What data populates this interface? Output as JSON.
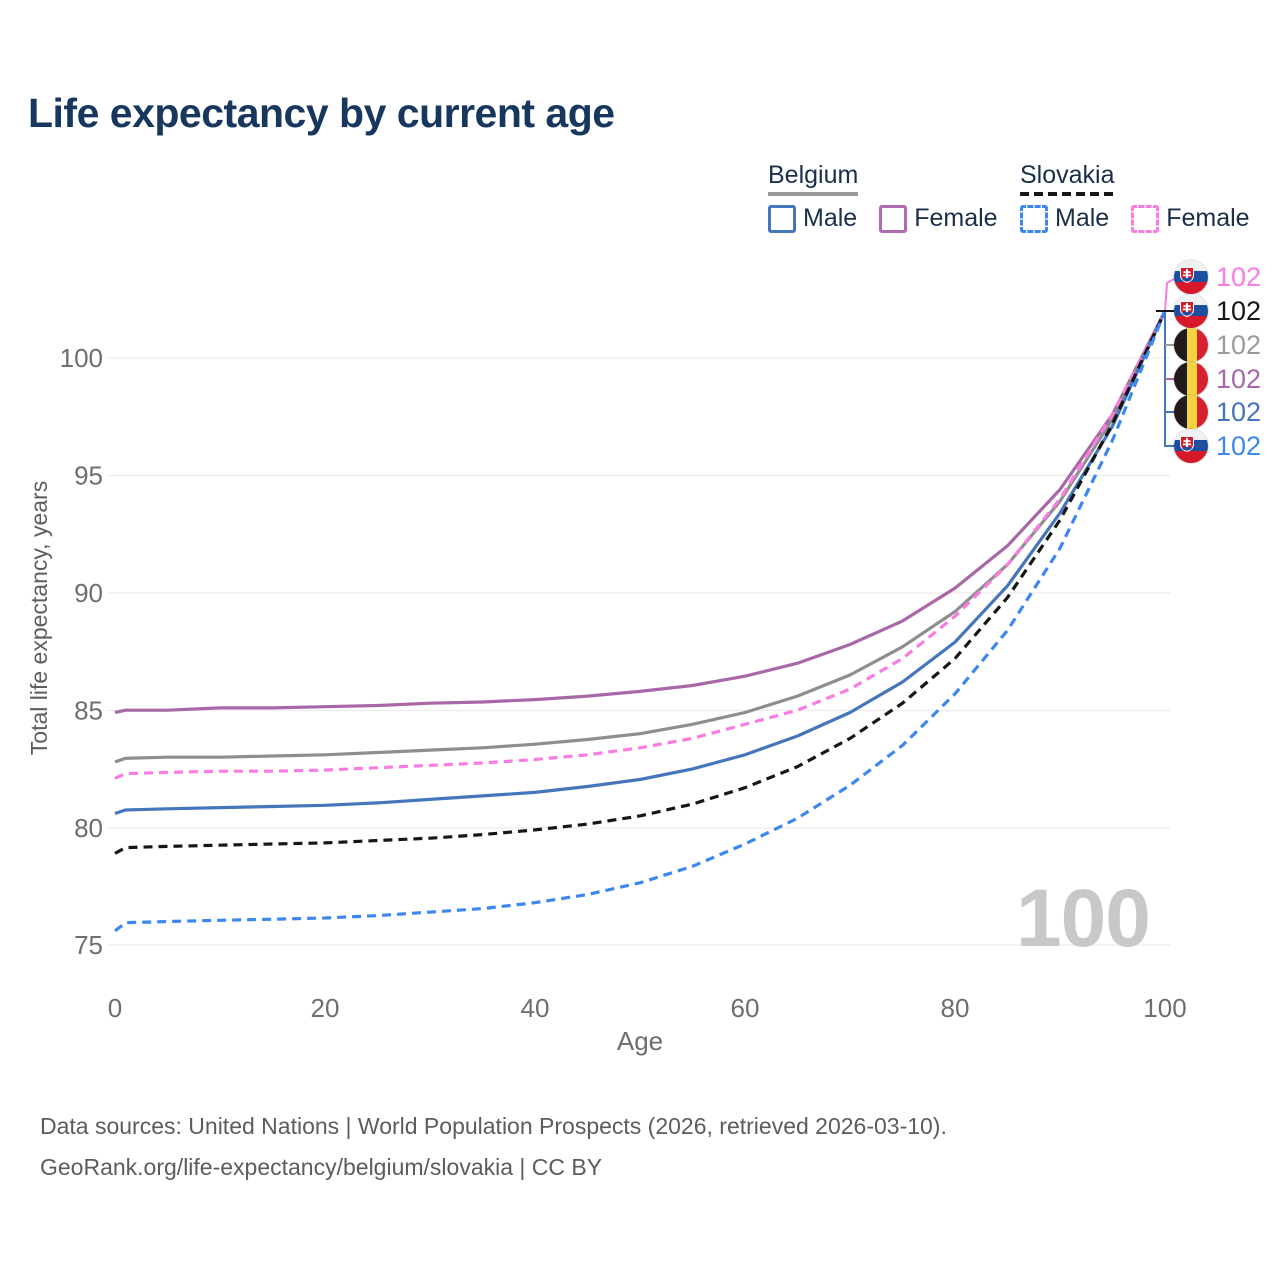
{
  "title": "Life expectancy by current age",
  "legend": {
    "belgium": {
      "label": "Belgium",
      "male": "Male",
      "female": "Female"
    },
    "slovakia": {
      "label": "Slovakia",
      "male": "Male",
      "female": "Female"
    }
  },
  "axes": {
    "y_label": "Total life expectancy, years",
    "x_label": "Age",
    "y_ticks": [
      "100",
      "95",
      "90",
      "85",
      "80",
      "75"
    ],
    "x_ticks": [
      "0",
      "20",
      "40",
      "60",
      "80",
      "100"
    ]
  },
  "end_labels": [
    {
      "flag": "slovakia-flag",
      "series": "Slovakia Female",
      "value": "102",
      "color": "#f97ce1"
    },
    {
      "flag": "slovakia-flag",
      "series": "Slovakia",
      "value": "102",
      "color": "#161616"
    },
    {
      "flag": "belgium-flag",
      "series": "Belgium",
      "value": "102",
      "color": "#9b9b9b"
    },
    {
      "flag": "belgium-flag",
      "series": "Belgium Female",
      "value": "102",
      "color": "#a868a8"
    },
    {
      "flag": "belgium-flag",
      "series": "Belgium Male",
      "value": "102",
      "color": "#4576bb"
    },
    {
      "flag": "slovakia-flag",
      "series": "Slovakia Male",
      "value": "102",
      "color": "#3d87f0"
    }
  ],
  "watermark": "100",
  "footer": {
    "line1": "Data sources: United Nations | World Population Prospects (2026, retrieved 2026-03-10).",
    "line2": "GeoRank.org/life-expectancy/belgium/slovakia | CC BY"
  },
  "chart_data": {
    "type": "line",
    "title": "Life expectancy by current age",
    "xlabel": "Age",
    "ylabel": "Total life expectancy, years",
    "xlim": [
      0,
      100
    ],
    "ylim": [
      74.5,
      102.5
    ],
    "grid": "horizontal",
    "x": [
      0,
      1,
      5,
      10,
      15,
      20,
      25,
      30,
      35,
      40,
      45,
      50,
      55,
      60,
      65,
      70,
      75,
      80,
      85,
      90,
      95,
      100
    ],
    "series": [
      {
        "id": "belgium-female",
        "name": "Belgium Female",
        "color": "#a868a8",
        "dashed": false,
        "values": [
          84.9,
          85.0,
          85.0,
          85.1,
          85.1,
          85.15,
          85.2,
          85.3,
          85.35,
          85.45,
          85.6,
          85.8,
          86.05,
          86.45,
          87.0,
          87.8,
          88.8,
          90.2,
          92.0,
          94.4,
          97.6,
          102
        ]
      },
      {
        "id": "belgium-both",
        "name": "Belgium",
        "color": "#8e8e8e",
        "dashed": false,
        "values": [
          82.8,
          82.95,
          83.0,
          83.0,
          83.05,
          83.1,
          83.2,
          83.3,
          83.4,
          83.55,
          83.75,
          84.0,
          84.4,
          84.9,
          85.6,
          86.5,
          87.7,
          89.2,
          91.2,
          93.9,
          97.4,
          102
        ]
      },
      {
        "id": "belgium-male",
        "name": "Belgium Male",
        "color": "#4576bb",
        "dashed": false,
        "values": [
          80.6,
          80.75,
          80.8,
          80.85,
          80.9,
          80.95,
          81.05,
          81.2,
          81.35,
          81.5,
          81.75,
          82.05,
          82.5,
          83.1,
          83.9,
          84.9,
          86.2,
          87.9,
          90.3,
          93.4,
          97.1,
          102
        ]
      },
      {
        "id": "slovakia-female",
        "name": "Slovakia Female",
        "color": "#f97ce1",
        "dashed": true,
        "values": [
          82.1,
          82.3,
          82.35,
          82.4,
          82.4,
          82.45,
          82.55,
          82.65,
          82.75,
          82.9,
          83.1,
          83.4,
          83.8,
          84.4,
          85.0,
          85.9,
          87.2,
          89.0,
          91.2,
          94.0,
          97.6,
          102
        ]
      },
      {
        "id": "slovakia-both",
        "name": "Slovakia",
        "color": "#161616",
        "dashed": true,
        "values": [
          78.9,
          79.15,
          79.2,
          79.25,
          79.3,
          79.35,
          79.45,
          79.55,
          79.7,
          79.9,
          80.15,
          80.5,
          81.0,
          81.7,
          82.6,
          83.8,
          85.3,
          87.2,
          89.8,
          93.1,
          97.2,
          102
        ]
      },
      {
        "id": "slovakia-male",
        "name": "Slovakia Male",
        "color": "#3d87f0",
        "dashed": true,
        "values": [
          75.6,
          75.95,
          76.0,
          76.05,
          76.1,
          76.15,
          76.25,
          76.4,
          76.55,
          76.8,
          77.15,
          77.65,
          78.35,
          79.3,
          80.4,
          81.8,
          83.5,
          85.7,
          88.4,
          91.9,
          96.5,
          102
        ]
      }
    ],
    "legend_position": "top-right",
    "end_value_label": 102
  }
}
